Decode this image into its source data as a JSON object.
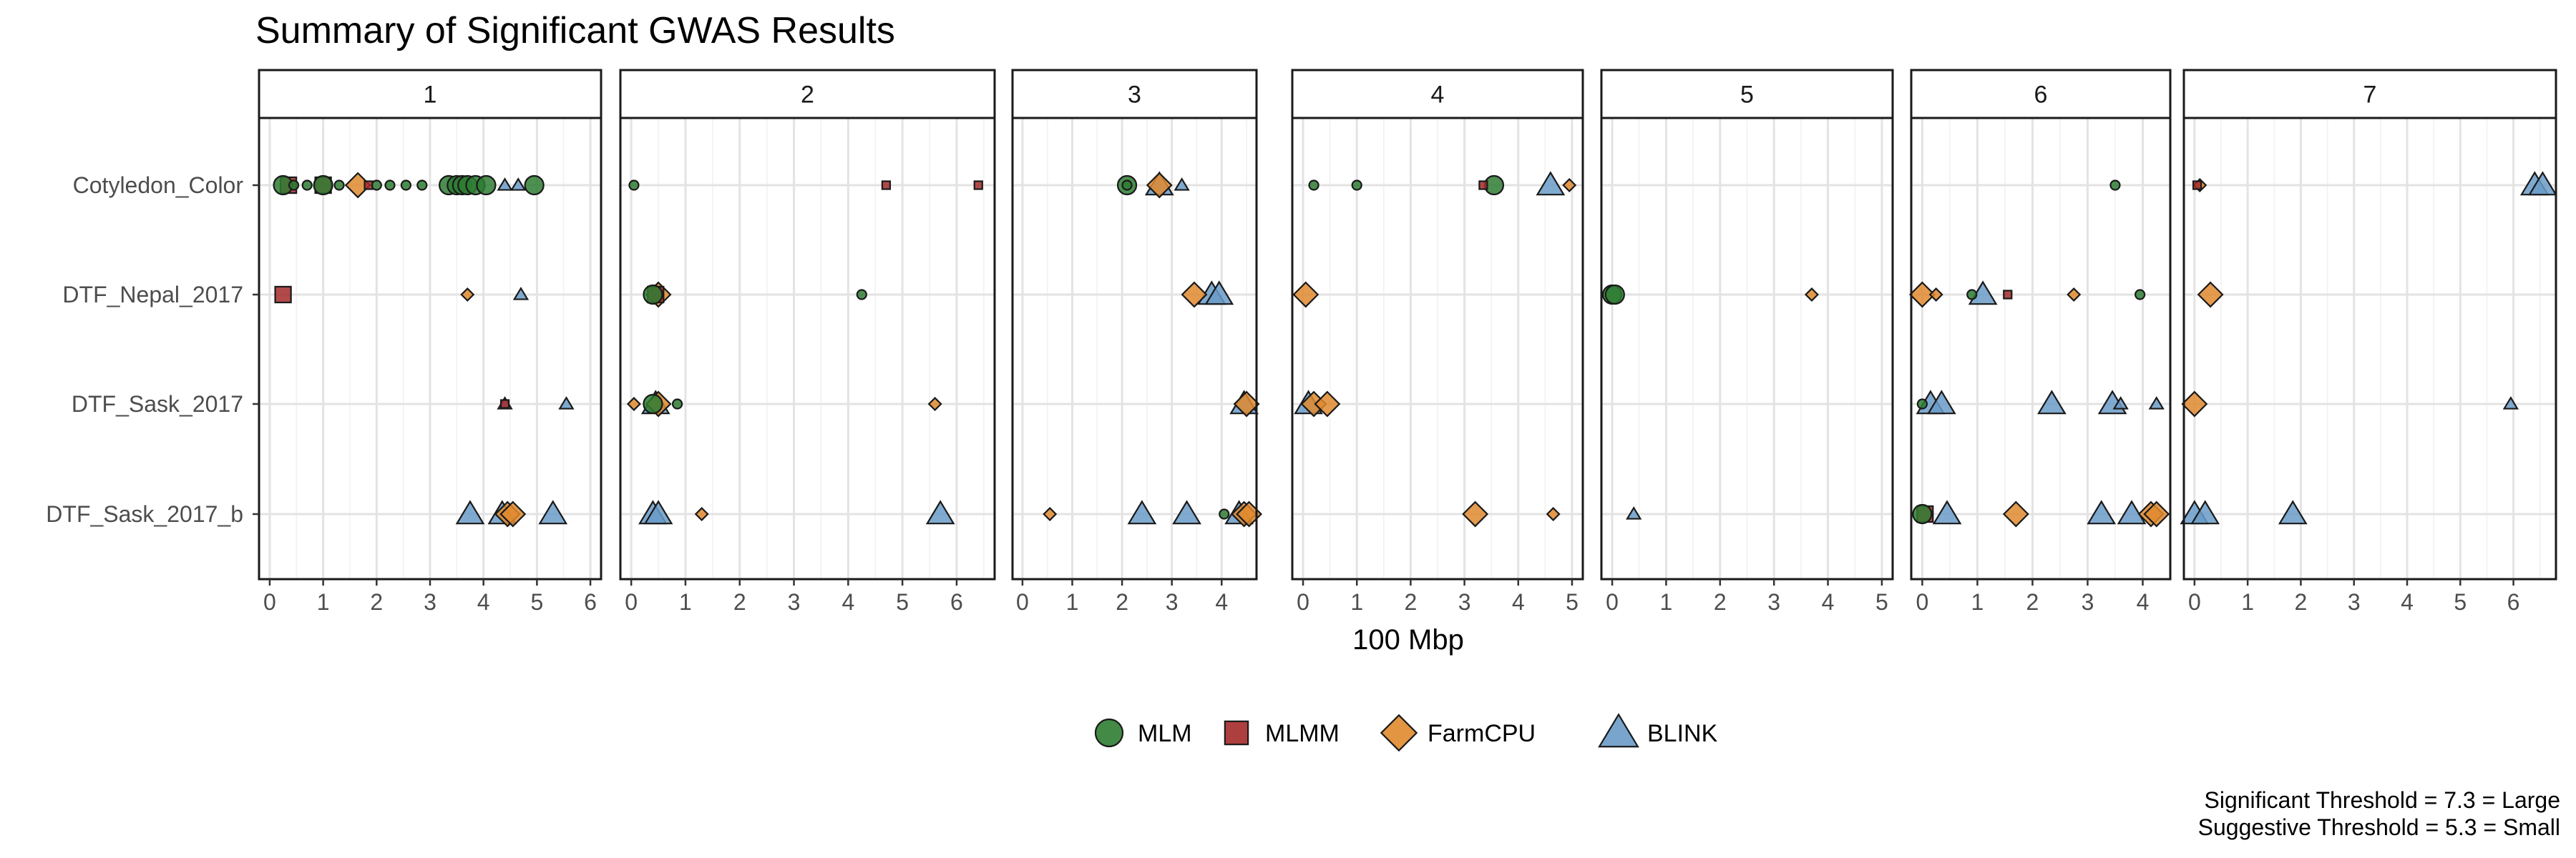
{
  "chart_data": {
    "type": "scatter",
    "title": "Summary of Significant GWAS Results",
    "xlabel": "100 Mbp",
    "traits": [
      "Cotyledon_Color",
      "DTF_Nepal_2017",
      "DTF_Sask_2017",
      "DTF_Sask_2017_b"
    ],
    "caption_lines": [
      "Significant Threshold = 7.3 = Large",
      "Suggestive Threshold = 5.3 = Small"
    ],
    "grid": true,
    "legend_position": "bottom",
    "legend": [
      {
        "name": "MLM",
        "shape": "circle",
        "color": "#2E7D32"
      },
      {
        "name": "MLMM",
        "shape": "square",
        "color": "#A52A2A"
      },
      {
        "name": "FarmCPU",
        "shape": "diamond",
        "color": "#E08A2E"
      },
      {
        "name": "BLINK",
        "shape": "triangle",
        "color": "#6A9BC8"
      }
    ],
    "panels": [
      {
        "label": "1",
        "xlim": [
          -0.2,
          6.2
        ],
        "ticks": [
          0,
          1,
          2,
          3,
          4,
          5,
          6
        ],
        "points": [
          {
            "trait": "Cotyledon_Color",
            "x": 0.25,
            "method": "MLM",
            "size": "large"
          },
          {
            "trait": "Cotyledon_Color",
            "x": 0.35,
            "method": "MLMM",
            "size": "large"
          },
          {
            "trait": "Cotyledon_Color",
            "x": 0.45,
            "method": "MLM",
            "size": "small"
          },
          {
            "trait": "Cotyledon_Color",
            "x": 0.7,
            "method": "MLM",
            "size": "small"
          },
          {
            "trait": "Cotyledon_Color",
            "x": 1.0,
            "method": "MLMM",
            "size": "large"
          },
          {
            "trait": "Cotyledon_Color",
            "x": 1.0,
            "method": "MLM",
            "size": "large"
          },
          {
            "trait": "Cotyledon_Color",
            "x": 1.3,
            "method": "MLM",
            "size": "small"
          },
          {
            "trait": "Cotyledon_Color",
            "x": 1.65,
            "method": "FarmCPU",
            "size": "large"
          },
          {
            "trait": "Cotyledon_Color",
            "x": 1.85,
            "method": "MLMM",
            "size": "small"
          },
          {
            "trait": "Cotyledon_Color",
            "x": 2.0,
            "method": "MLM",
            "size": "small"
          },
          {
            "trait": "Cotyledon_Color",
            "x": 2.25,
            "method": "MLM",
            "size": "small"
          },
          {
            "trait": "Cotyledon_Color",
            "x": 2.55,
            "method": "MLM",
            "size": "small"
          },
          {
            "trait": "Cotyledon_Color",
            "x": 2.85,
            "method": "MLM",
            "size": "small"
          },
          {
            "trait": "Cotyledon_Color",
            "x": 3.35,
            "method": "MLM",
            "size": "large"
          },
          {
            "trait": "Cotyledon_Color",
            "x": 3.5,
            "method": "MLM",
            "size": "large"
          },
          {
            "trait": "Cotyledon_Color",
            "x": 3.6,
            "method": "MLM",
            "size": "large"
          },
          {
            "trait": "Cotyledon_Color",
            "x": 3.7,
            "method": "MLM",
            "size": "large"
          },
          {
            "trait": "Cotyledon_Color",
            "x": 3.85,
            "method": "MLM",
            "size": "large"
          },
          {
            "trait": "Cotyledon_Color",
            "x": 4.05,
            "method": "MLM",
            "size": "large"
          },
          {
            "trait": "Cotyledon_Color",
            "x": 4.4,
            "method": "BLINK",
            "size": "small"
          },
          {
            "trait": "Cotyledon_Color",
            "x": 4.65,
            "method": "BLINK",
            "size": "small"
          },
          {
            "trait": "Cotyledon_Color",
            "x": 4.95,
            "method": "MLM",
            "size": "large"
          },
          {
            "trait": "DTF_Nepal_2017",
            "x": 0.25,
            "method": "MLMM",
            "size": "large"
          },
          {
            "trait": "DTF_Nepal_2017",
            "x": 3.7,
            "method": "FarmCPU",
            "size": "small"
          },
          {
            "trait": "DTF_Nepal_2017",
            "x": 4.7,
            "method": "BLINK",
            "size": "small"
          },
          {
            "trait": "DTF_Sask_2017",
            "x": 4.4,
            "method": "MLMM",
            "size": "small"
          },
          {
            "trait": "DTF_Sask_2017",
            "x": 4.4,
            "method": "BLINK",
            "size": "small"
          },
          {
            "trait": "DTF_Sask_2017",
            "x": 5.55,
            "method": "BLINK",
            "size": "small"
          },
          {
            "trait": "DTF_Sask_2017_b",
            "x": 3.75,
            "method": "BLINK",
            "size": "large"
          },
          {
            "trait": "DTF_Sask_2017_b",
            "x": 4.35,
            "method": "BLINK",
            "size": "large"
          },
          {
            "trait": "DTF_Sask_2017_b",
            "x": 4.45,
            "method": "FarmCPU",
            "size": "large"
          },
          {
            "trait": "DTF_Sask_2017_b",
            "x": 4.55,
            "method": "FarmCPU",
            "size": "large"
          },
          {
            "trait": "DTF_Sask_2017_b",
            "x": 5.3,
            "method": "BLINK",
            "size": "large"
          }
        ]
      },
      {
        "label": "2",
        "xlim": [
          -0.2,
          6.7
        ],
        "ticks": [
          0,
          1,
          2,
          3,
          4,
          5,
          6
        ],
        "points": [
          {
            "trait": "Cotyledon_Color",
            "x": 0.05,
            "method": "MLM",
            "size": "small"
          },
          {
            "trait": "Cotyledon_Color",
            "x": 4.7,
            "method": "MLMM",
            "size": "small"
          },
          {
            "trait": "Cotyledon_Color",
            "x": 6.4,
            "method": "MLMM",
            "size": "small"
          },
          {
            "trait": "DTF_Nepal_2017",
            "x": 0.4,
            "method": "MLM",
            "size": "large"
          },
          {
            "trait": "DTF_Nepal_2017",
            "x": 0.45,
            "method": "MLMM",
            "size": "large"
          },
          {
            "trait": "DTF_Nepal_2017",
            "x": 0.5,
            "method": "FarmCPU",
            "size": "large"
          },
          {
            "trait": "DTF_Nepal_2017",
            "x": 4.25,
            "method": "MLM",
            "size": "small"
          },
          {
            "trait": "DTF_Sask_2017",
            "x": 0.05,
            "method": "FarmCPU",
            "size": "small"
          },
          {
            "trait": "DTF_Sask_2017",
            "x": 0.4,
            "method": "MLM",
            "size": "large"
          },
          {
            "trait": "DTF_Sask_2017",
            "x": 0.45,
            "method": "BLINK",
            "size": "large"
          },
          {
            "trait": "DTF_Sask_2017",
            "x": 0.5,
            "method": "FarmCPU",
            "size": "large"
          },
          {
            "trait": "DTF_Sask_2017",
            "x": 0.85,
            "method": "MLM",
            "size": "small"
          },
          {
            "trait": "DTF_Sask_2017",
            "x": 5.6,
            "method": "FarmCPU",
            "size": "small"
          },
          {
            "trait": "DTF_Sask_2017_b",
            "x": 0.4,
            "method": "BLINK",
            "size": "large"
          },
          {
            "trait": "DTF_Sask_2017_b",
            "x": 0.5,
            "method": "BLINK",
            "size": "large"
          },
          {
            "trait": "DTF_Sask_2017_b",
            "x": 1.3,
            "method": "FarmCPU",
            "size": "small"
          },
          {
            "trait": "DTF_Sask_2017_b",
            "x": 5.7,
            "method": "BLINK",
            "size": "large"
          }
        ]
      },
      {
        "label": "3",
        "xlim": [
          -0.2,
          4.7
        ],
        "ticks": [
          0,
          1,
          2,
          3,
          4
        ],
        "points": [
          {
            "trait": "Cotyledon_Color",
            "x": 2.1,
            "method": "MLM",
            "size": "large"
          },
          {
            "trait": "Cotyledon_Color",
            "x": 2.1,
            "method": "MLM",
            "size": "small"
          },
          {
            "trait": "Cotyledon_Color",
            "x": 2.75,
            "method": "BLINK",
            "size": "large"
          },
          {
            "trait": "Cotyledon_Color",
            "x": 2.75,
            "method": "FarmCPU",
            "size": "large"
          },
          {
            "trait": "Cotyledon_Color",
            "x": 3.2,
            "method": "BLINK",
            "size": "small"
          },
          {
            "trait": "DTF_Nepal_2017",
            "x": 3.45,
            "method": "FarmCPU",
            "size": "large"
          },
          {
            "trait": "DTF_Nepal_2017",
            "x": 3.8,
            "method": "BLINK",
            "size": "large"
          },
          {
            "trait": "DTF_Nepal_2017",
            "x": 3.95,
            "method": "BLINK",
            "size": "large"
          },
          {
            "trait": "DTF_Sask_2017",
            "x": 4.45,
            "method": "BLINK",
            "size": "large"
          },
          {
            "trait": "DTF_Sask_2017",
            "x": 4.5,
            "method": "FarmCPU",
            "size": "large"
          },
          {
            "trait": "DTF_Sask_2017_b",
            "x": 0.55,
            "method": "FarmCPU",
            "size": "small"
          },
          {
            "trait": "DTF_Sask_2017_b",
            "x": 2.4,
            "method": "BLINK",
            "size": "large"
          },
          {
            "trait": "DTF_Sask_2017_b",
            "x": 3.3,
            "method": "BLINK",
            "size": "large"
          },
          {
            "trait": "DTF_Sask_2017_b",
            "x": 4.05,
            "method": "MLM",
            "size": "small"
          },
          {
            "trait": "DTF_Sask_2017_b",
            "x": 4.35,
            "method": "BLINK",
            "size": "large"
          },
          {
            "trait": "DTF_Sask_2017_b",
            "x": 4.45,
            "method": "FarmCPU",
            "size": "large"
          },
          {
            "trait": "DTF_Sask_2017_b",
            "x": 4.55,
            "method": "FarmCPU",
            "size": "large"
          }
        ]
      },
      {
        "label": "4",
        "xlim": [
          -0.2,
          5.2
        ],
        "ticks": [
          0,
          1,
          2,
          3,
          4,
          5
        ],
        "points": [
          {
            "trait": "Cotyledon_Color",
            "x": 0.2,
            "method": "MLM",
            "size": "small"
          },
          {
            "trait": "Cotyledon_Color",
            "x": 1.0,
            "method": "MLM",
            "size": "small"
          },
          {
            "trait": "Cotyledon_Color",
            "x": 3.35,
            "method": "MLMM",
            "size": "small"
          },
          {
            "trait": "Cotyledon_Color",
            "x": 3.55,
            "method": "MLM",
            "size": "large"
          },
          {
            "trait": "Cotyledon_Color",
            "x": 4.6,
            "method": "BLINK",
            "size": "large"
          },
          {
            "trait": "Cotyledon_Color",
            "x": 4.95,
            "method": "FarmCPU",
            "size": "small"
          },
          {
            "trait": "DTF_Nepal_2017",
            "x": 0.05,
            "method": "FarmCPU",
            "size": "large"
          },
          {
            "trait": "DTF_Sask_2017",
            "x": 0.1,
            "method": "BLINK",
            "size": "large"
          },
          {
            "trait": "DTF_Sask_2017",
            "x": 0.2,
            "method": "FarmCPU",
            "size": "large"
          },
          {
            "trait": "DTF_Sask_2017",
            "x": 0.45,
            "method": "FarmCPU",
            "size": "large"
          },
          {
            "trait": "DTF_Sask_2017_b",
            "x": 3.2,
            "method": "FarmCPU",
            "size": "large"
          },
          {
            "trait": "DTF_Sask_2017_b",
            "x": 4.65,
            "method": "FarmCPU",
            "size": "small"
          }
        ]
      },
      {
        "label": "5",
        "xlim": [
          -0.2,
          5.2
        ],
        "ticks": [
          0,
          1,
          2,
          3,
          4,
          5
        ],
        "points": [
          {
            "trait": "DTF_Nepal_2017",
            "x": 0.0,
            "method": "MLM",
            "size": "large"
          },
          {
            "trait": "DTF_Nepal_2017",
            "x": 0.05,
            "method": "MLM",
            "size": "large"
          },
          {
            "trait": "DTF_Nepal_2017",
            "x": 3.7,
            "method": "FarmCPU",
            "size": "small"
          },
          {
            "trait": "DTF_Sask_2017_b",
            "x": 0.4,
            "method": "BLINK",
            "size": "small"
          }
        ]
      },
      {
        "label": "6",
        "xlim": [
          -0.2,
          4.5
        ],
        "ticks": [
          0,
          1,
          2,
          3,
          4
        ],
        "points": [
          {
            "trait": "Cotyledon_Color",
            "x": 3.5,
            "method": "MLM",
            "size": "small"
          },
          {
            "trait": "DTF_Nepal_2017",
            "x": 0.0,
            "method": "FarmCPU",
            "size": "large"
          },
          {
            "trait": "DTF_Nepal_2017",
            "x": 0.25,
            "method": "FarmCPU",
            "size": "small"
          },
          {
            "trait": "DTF_Nepal_2017",
            "x": 0.9,
            "method": "MLM",
            "size": "small"
          },
          {
            "trait": "DTF_Nepal_2017",
            "x": 1.1,
            "method": "BLINK",
            "size": "large"
          },
          {
            "trait": "DTF_Nepal_2017",
            "x": 1.55,
            "method": "MLMM",
            "size": "small"
          },
          {
            "trait": "DTF_Nepal_2017",
            "x": 2.75,
            "method": "FarmCPU",
            "size": "small"
          },
          {
            "trait": "DTF_Nepal_2017",
            "x": 3.95,
            "method": "MLM",
            "size": "small"
          },
          {
            "trait": "DTF_Sask_2017",
            "x": 0.0,
            "method": "MLM",
            "size": "small"
          },
          {
            "trait": "DTF_Sask_2017",
            "x": 0.15,
            "method": "BLINK",
            "size": "large"
          },
          {
            "trait": "DTF_Sask_2017",
            "x": 0.35,
            "method": "BLINK",
            "size": "large"
          },
          {
            "trait": "DTF_Sask_2017",
            "x": 2.35,
            "method": "BLINK",
            "size": "large"
          },
          {
            "trait": "DTF_Sask_2017",
            "x": 3.45,
            "method": "BLINK",
            "size": "large"
          },
          {
            "trait": "DTF_Sask_2017",
            "x": 3.6,
            "method": "BLINK",
            "size": "small"
          },
          {
            "trait": "DTF_Sask_2017",
            "x": 4.25,
            "method": "BLINK",
            "size": "small"
          },
          {
            "trait": "DTF_Sask_2017_b",
            "x": 0.0,
            "method": "MLM",
            "size": "large"
          },
          {
            "trait": "DTF_Sask_2017_b",
            "x": 0.05,
            "method": "MLMM",
            "size": "large"
          },
          {
            "trait": "DTF_Sask_2017_b",
            "x": 0.45,
            "method": "BLINK",
            "size": "large"
          },
          {
            "trait": "DTF_Sask_2017_b",
            "x": 1.7,
            "method": "FarmCPU",
            "size": "large"
          },
          {
            "trait": "DTF_Sask_2017_b",
            "x": 3.25,
            "method": "BLINK",
            "size": "large"
          },
          {
            "trait": "DTF_Sask_2017_b",
            "x": 3.8,
            "method": "BLINK",
            "size": "large"
          },
          {
            "trait": "DTF_Sask_2017_b",
            "x": 4.15,
            "method": "FarmCPU",
            "size": "large"
          },
          {
            "trait": "DTF_Sask_2017_b",
            "x": 4.25,
            "method": "FarmCPU",
            "size": "large"
          }
        ]
      },
      {
        "label": "7",
        "xlim": [
          -0.2,
          6.8
        ],
        "ticks": [
          0,
          1,
          2,
          3,
          4,
          5,
          6
        ],
        "points": [
          {
            "trait": "Cotyledon_Color",
            "x": 0.05,
            "method": "MLMM",
            "size": "small"
          },
          {
            "trait": "Cotyledon_Color",
            "x": 0.1,
            "method": "FarmCPU",
            "size": "small"
          },
          {
            "trait": "Cotyledon_Color",
            "x": 6.4,
            "method": "BLINK",
            "size": "large"
          },
          {
            "trait": "Cotyledon_Color",
            "x": 6.55,
            "method": "BLINK",
            "size": "large"
          },
          {
            "trait": "DTF_Nepal_2017",
            "x": 0.3,
            "method": "FarmCPU",
            "size": "large"
          },
          {
            "trait": "DTF_Sask_2017",
            "x": 0.0,
            "method": "FarmCPU",
            "size": "large"
          },
          {
            "trait": "DTF_Sask_2017",
            "x": 5.95,
            "method": "BLINK",
            "size": "small"
          },
          {
            "trait": "DTF_Sask_2017_b",
            "x": 0.0,
            "method": "BLINK",
            "size": "large"
          },
          {
            "trait": "DTF_Sask_2017_b",
            "x": 0.2,
            "method": "BLINK",
            "size": "large"
          },
          {
            "trait": "DTF_Sask_2017_b",
            "x": 1.85,
            "method": "BLINK",
            "size": "large"
          }
        ]
      }
    ]
  }
}
